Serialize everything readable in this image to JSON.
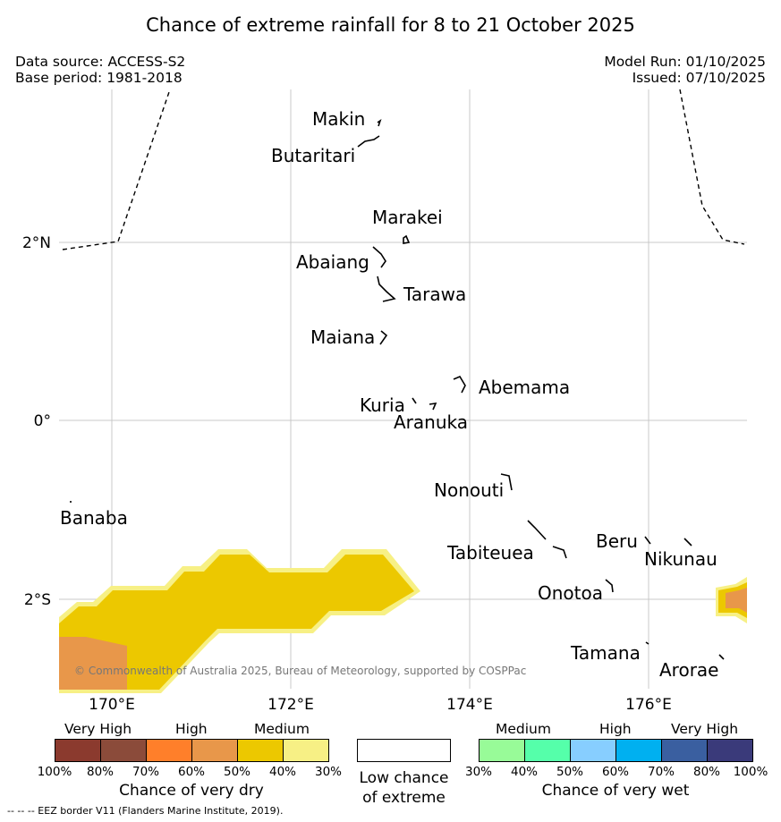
{
  "title": "Chance of extreme rainfall for 8 to 21 October 2025",
  "meta": {
    "data_source": "Data source: ACCESS-S2",
    "base_period": "Base period: 1981-2018",
    "model_run": "Model Run: 01/10/2025",
    "issued": "Issued: 07/10/2025"
  },
  "map": {
    "lon_ticks": [
      "170°E",
      "172°E",
      "174°E",
      "176°E"
    ],
    "lat_ticks": [
      "2°N",
      "0°",
      "2°S"
    ],
    "islands": [
      "Makin",
      "Butaritari",
      "Marakei",
      "Abaiang",
      "Tarawa",
      "Maiana",
      "Abemama",
      "Kuria",
      "Aranuka",
      "Nonouti",
      "Banaba",
      "Tabiteuea",
      "Beru",
      "Nikunau",
      "Onotoa",
      "Tamana",
      "Arorae"
    ],
    "copyright": "© Commonwealth of Australia 2025, Bureau of Meteorology, supported by COSPPac",
    "colors": {
      "medium_dry": "#ecc800",
      "medium_dry_light": "#f7f085",
      "high_dry": "#e8974a",
      "grid": "#c8c8c8"
    }
  },
  "legend": {
    "dry": {
      "headers": [
        "Very High",
        "High",
        "Medium"
      ],
      "colors": [
        "#8b3a2e",
        "#8b4b3a",
        "#ff7f2a",
        "#e8974a",
        "#ecc800",
        "#f7f085"
      ],
      "ticks": [
        "100%",
        "80%",
        "70%",
        "60%",
        "50%",
        "40%",
        "30%"
      ],
      "title": "Chance of very dry"
    },
    "low": {
      "title_line1": "Low chance",
      "title_line2": "of extreme",
      "color": "#ffffff"
    },
    "wet": {
      "headers": [
        "Medium",
        "High",
        "Very High"
      ],
      "colors": [
        "#98fb98",
        "#55ffaa",
        "#87ceff",
        "#00b0f0",
        "#3a5fa0",
        "#3a3a7a"
      ],
      "ticks": [
        "30%",
        "40%",
        "50%",
        "60%",
        "70%",
        "80%",
        "100%"
      ],
      "title": "Chance of very wet"
    }
  },
  "footnote": "--  --  -- EEZ border V11 (Flanders Marine Institute, 2019)."
}
